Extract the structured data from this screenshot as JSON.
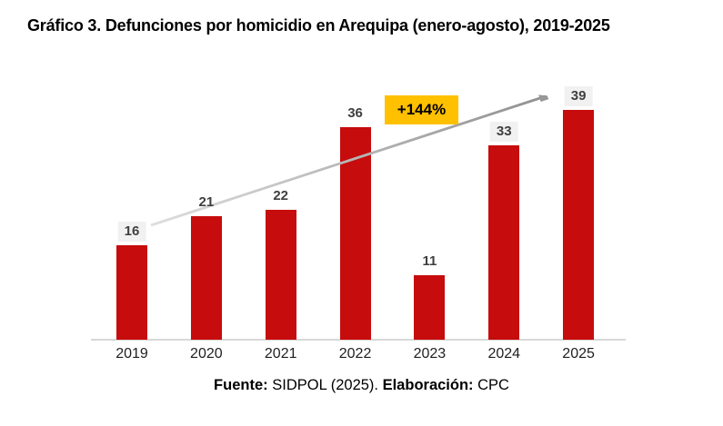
{
  "title": "Gráfico 3. Defunciones por homicidio en Arequipa (enero-agosto), 2019-2025",
  "chart_data": {
    "type": "bar",
    "title": "Gráfico 3. Defunciones por homicidio en Arequipa (enero-agosto), 2019-2025",
    "categories": [
      "2019",
      "2020",
      "2021",
      "2022",
      "2023",
      "2024",
      "2025"
    ],
    "values": [
      16,
      21,
      22,
      36,
      11,
      33,
      39
    ],
    "value_labels_boxed": [
      true,
      false,
      false,
      false,
      false,
      true,
      true
    ],
    "xlabel": "",
    "ylabel": "",
    "ylim": [
      0,
      42
    ],
    "grid": false,
    "legend": false,
    "bar_color": "#c60c0c",
    "value_label_color": "#3f3f3f",
    "value_label_box_color": "#f1f1f1",
    "axis_line_color": "#d8d8d8",
    "annotation": {
      "text": "+144%",
      "bg_color": "#ffc000",
      "text_color": "#000000"
    },
    "trend_arrow": {
      "from_category": "2019",
      "to_category": "2025",
      "color_start": "#dedede",
      "color_end": "#8f8f8f"
    }
  },
  "footer": {
    "fuente_label": "Fuente:",
    "fuente_value": " SIDPOL (2025). ",
    "elaboracion_label": "Elaboración:",
    "elaboracion_value": " CPC"
  }
}
